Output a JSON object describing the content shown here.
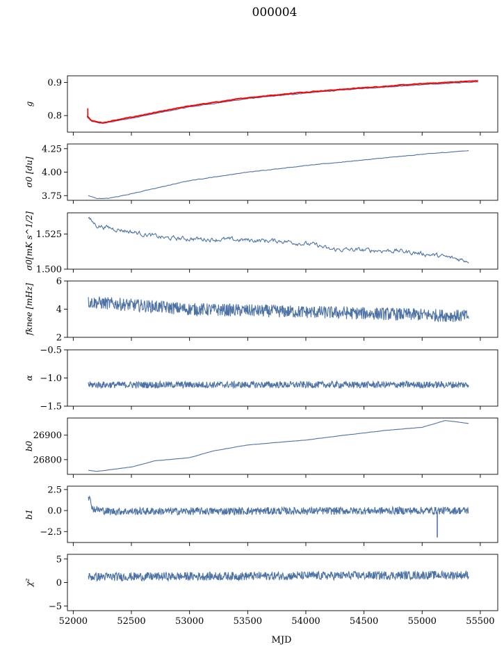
{
  "figure": {
    "title": "000004",
    "xlabel": "MJD"
  },
  "colors": {
    "series_blue": "#4c72a6",
    "fit_red": "#ff0000",
    "axis": "#000000"
  },
  "chart_data": [
    {
      "type": "line",
      "ylabel": "g",
      "ylim": [
        0.75,
        0.92
      ],
      "yticks": [
        0.8,
        0.9
      ],
      "ytick_labels": [
        "0.8",
        "0.9"
      ],
      "xlim": [
        51950,
        55650
      ],
      "x_range": [
        52120,
        55480
      ],
      "series": [
        {
          "color_key": "series_blue",
          "noise": 0.0015,
          "dense": 0,
          "knots": [
            [
              52120,
              0.795
            ],
            [
              52160,
              0.782
            ],
            [
              52250,
              0.776
            ],
            [
              52500,
              0.792
            ],
            [
              53000,
              0.826
            ],
            [
              53500,
              0.851
            ],
            [
              54000,
              0.868
            ],
            [
              54500,
              0.882
            ],
            [
              55000,
              0.893
            ],
            [
              55480,
              0.902
            ]
          ]
        },
        {
          "color_key": "fit_red",
          "noise": 0.0015,
          "dense": 0,
          "knots": [
            [
              52120,
              0.8
            ],
            [
              52160,
              0.784
            ],
            [
              52250,
              0.778
            ],
            [
              52500,
              0.795
            ],
            [
              53000,
              0.829
            ],
            [
              53500,
              0.854
            ],
            [
              54000,
              0.871
            ],
            [
              54500,
              0.884
            ],
            [
              55000,
              0.896
            ],
            [
              55480,
              0.905
            ]
          ],
          "spike": [
            52125,
            0.795,
            0.822
          ]
        }
      ]
    },
    {
      "type": "line",
      "ylabel": "σ0 [du]",
      "ylim": [
        3.7,
        4.3
      ],
      "yticks": [
        3.75,
        4.0,
        4.25
      ],
      "ytick_labels": [
        "3.75",
        "4.00",
        "4.25"
      ],
      "xlim": [
        51950,
        55650
      ],
      "x_range": [
        52130,
        55400
      ],
      "series": [
        {
          "color_key": "series_blue",
          "noise": 0.004,
          "dense": 0,
          "knots": [
            [
              52130,
              3.75
            ],
            [
              52200,
              3.72
            ],
            [
              52300,
              3.72
            ],
            [
              52500,
              3.77
            ],
            [
              53000,
              3.91
            ],
            [
              53500,
              4.0
            ],
            [
              54000,
              4.07
            ],
            [
              54500,
              4.13
            ],
            [
              55000,
              4.19
            ],
            [
              55400,
              4.23
            ]
          ]
        }
      ]
    },
    {
      "type": "line",
      "ylabel": "σ0[mK s^1/2]",
      "ylim": [
        1.5,
        1.54
      ],
      "yticks": [
        1.5,
        1.525
      ],
      "ytick_labels": [
        "1.500",
        "1.525"
      ],
      "xlim": [
        51950,
        55650
      ],
      "x_range": [
        52130,
        55400
      ],
      "series": [
        {
          "color_key": "series_blue",
          "noise": 0.0025,
          "dense": 0,
          "knots": [
            [
              52130,
              1.536
            ],
            [
              52200,
              1.531
            ],
            [
              52400,
              1.528
            ],
            [
              52800,
              1.522
            ],
            [
              53300,
              1.521
            ],
            [
              53800,
              1.52
            ],
            [
              54100,
              1.517
            ],
            [
              54200,
              1.514
            ],
            [
              54800,
              1.513
            ],
            [
              55100,
              1.51
            ],
            [
              55400,
              1.506
            ]
          ]
        }
      ]
    },
    {
      "type": "line",
      "ylabel": "fknee [mHz]",
      "ylim": [
        2,
        6
      ],
      "yticks": [
        2,
        4,
        6
      ],
      "ytick_labels": [
        "2",
        "4",
        "6"
      ],
      "xlim": [
        51950,
        55650
      ],
      "x_range": [
        52130,
        55400
      ],
      "series": [
        {
          "color_key": "series_blue",
          "noise": 0.45,
          "dense": 1,
          "knots": [
            [
              52130,
              4.5
            ],
            [
              52500,
              4.3
            ],
            [
              53000,
              4.0
            ],
            [
              53500,
              3.9
            ],
            [
              54000,
              3.8
            ],
            [
              54500,
              3.7
            ],
            [
              55000,
              3.6
            ],
            [
              55400,
              3.5
            ]
          ]
        }
      ]
    },
    {
      "type": "line",
      "ylabel": "α",
      "ylim": [
        -1.5,
        -0.5
      ],
      "yticks": [
        -1.5,
        -1.0,
        -0.5
      ],
      "ytick_labels": [
        "−1.5",
        "−1.0",
        "−0.5"
      ],
      "xlim": [
        51950,
        55650
      ],
      "x_range": [
        52130,
        55400
      ],
      "series": [
        {
          "color_key": "series_blue",
          "noise": 0.06,
          "dense": 1,
          "knots": [
            [
              52130,
              -1.12
            ],
            [
              55400,
              -1.12
            ]
          ]
        }
      ]
    },
    {
      "type": "line",
      "ylabel": "b0",
      "ylim": [
        26740,
        26970
      ],
      "yticks": [
        26800,
        26900
      ],
      "ytick_labels": [
        "26800",
        "26900"
      ],
      "xlim": [
        51950,
        55650
      ],
      "x_range": [
        52130,
        55400
      ],
      "series": [
        {
          "color_key": "series_blue",
          "noise": 0.6,
          "dense": 0,
          "knots": [
            [
              52130,
              26757
            ],
            [
              52200,
              26752
            ],
            [
              52500,
              26770
            ],
            [
              52700,
              26795
            ],
            [
              53000,
              26808
            ],
            [
              53200,
              26835
            ],
            [
              53500,
              26860
            ],
            [
              54000,
              26880
            ],
            [
              54300,
              26898
            ],
            [
              54700,
              26920
            ],
            [
              55000,
              26932
            ],
            [
              55200,
              26960
            ],
            [
              55400,
              26948
            ]
          ]
        }
      ]
    },
    {
      "type": "line",
      "ylabel": "b1",
      "ylim": [
        -3.8,
        2.9
      ],
      "yticks": [
        -2.5,
        0.0,
        2.5
      ],
      "ytick_labels": [
        "−2.5",
        "0.0",
        "2.5"
      ],
      "xlim": [
        51950,
        55650
      ],
      "x_range": [
        52130,
        55400
      ],
      "series": [
        {
          "color_key": "series_blue",
          "noise": 0.45,
          "dense": 1,
          "knots": [
            [
              52130,
              1.8
            ],
            [
              52170,
              0.2
            ],
            [
              52300,
              -0.1
            ],
            [
              55400,
              0.0
            ]
          ],
          "spike": [
            55130,
            -0.2,
            -3.2
          ]
        }
      ]
    },
    {
      "type": "line",
      "ylabel": "χ²",
      "ylim": [
        -6,
        6
      ],
      "yticks": [
        -5,
        0,
        5
      ],
      "ytick_labels": [
        "−5",
        "0",
        "5"
      ],
      "xlim": [
        51950,
        55650
      ],
      "x_range": [
        52130,
        55400
      ],
      "xticks": [
        52000,
        52500,
        53000,
        53500,
        54000,
        54500,
        55000,
        55500
      ],
      "xtick_labels": [
        "52000",
        "52500",
        "53000",
        "53500",
        "54000",
        "54500",
        "55000",
        "55500"
      ],
      "series": [
        {
          "color_key": "series_blue",
          "noise": 0.9,
          "dense": 1,
          "knots": [
            [
              52130,
              1.2
            ],
            [
              55400,
              1.6
            ]
          ]
        }
      ]
    }
  ]
}
